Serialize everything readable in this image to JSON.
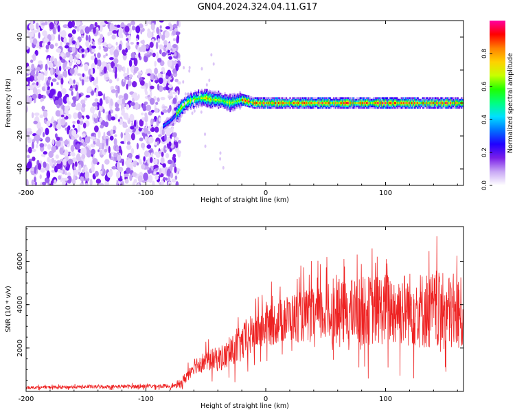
{
  "title": "GN04.2024.324.04.11.G17",
  "chart_data": [
    {
      "type": "heatmap",
      "title": "GN04.2024.324.04.11.G17",
      "xlabel": "Height of straight line (km)",
      "ylabel": "Frequency (Hz)",
      "xlim": [
        -200,
        165
      ],
      "ylim": [
        -50,
        50
      ],
      "xticks": [
        -200,
        -100,
        0,
        100
      ],
      "yticks": [
        -40,
        -20,
        0,
        20,
        40
      ],
      "colorbar": {
        "label": "Normalized spectral amplitude",
        "range": [
          0,
          1
        ],
        "ticks": [
          0.0,
          0.2,
          0.4,
          0.6,
          0.8
        ],
        "colormap": [
          "#ffffff",
          "#c9a8f5",
          "#7a1fe8",
          "#2000ff",
          "#0070ff",
          "#00e0ff",
          "#00ff80",
          "#20ff00",
          "#c8ff00",
          "#ffd000",
          "#ff8000",
          "#ff0000",
          "#ff00a0"
        ]
      },
      "noise_region_km": [
        -200,
        -72
      ],
      "signal_track": {
        "x_km": [
          -86,
          -80,
          -75,
          -70,
          -65,
          -60,
          -55,
          -50,
          -45,
          -40,
          -35,
          -30,
          -25,
          -20,
          -10,
          0,
          20,
          40,
          60,
          80,
          100,
          120,
          140,
          165
        ],
        "freq_hz": [
          -14,
          -11,
          -7,
          -2,
          1,
          2,
          3,
          3,
          2,
          2,
          1,
          0,
          1,
          2,
          0,
          0,
          0,
          0,
          0,
          0,
          0,
          0,
          0,
          0
        ]
      }
    },
    {
      "type": "line",
      "xlabel": "Height of straight line (km)",
      "ylabel": "SNR (10 * v/v)",
      "xlim": [
        -200,
        165
      ],
      "ylim": [
        0,
        7600
      ],
      "xticks": [
        -200,
        -100,
        0,
        100
      ],
      "yticks": [
        2000,
        4000,
        6000
      ],
      "color": "#ee2222",
      "envelope": {
        "x_km": [
          -200,
          -75,
          -70,
          -60,
          -50,
          -40,
          -30,
          -20,
          -10,
          0,
          10,
          20,
          40,
          60,
          80,
          100,
          120,
          140,
          165
        ],
        "mean": [
          180,
          250,
          400,
          1200,
          1400,
          1500,
          1700,
          2200,
          2700,
          3000,
          3200,
          3400,
          3500,
          3600,
          3700,
          3800,
          3800,
          3700,
          3500
        ],
        "amplitude": [
          80,
          120,
          300,
          500,
          600,
          700,
          900,
          1100,
          1200,
          1200,
          1300,
          1400,
          1600,
          1800,
          2000,
          2100,
          2200,
          2300,
          2200
        ]
      }
    }
  ]
}
